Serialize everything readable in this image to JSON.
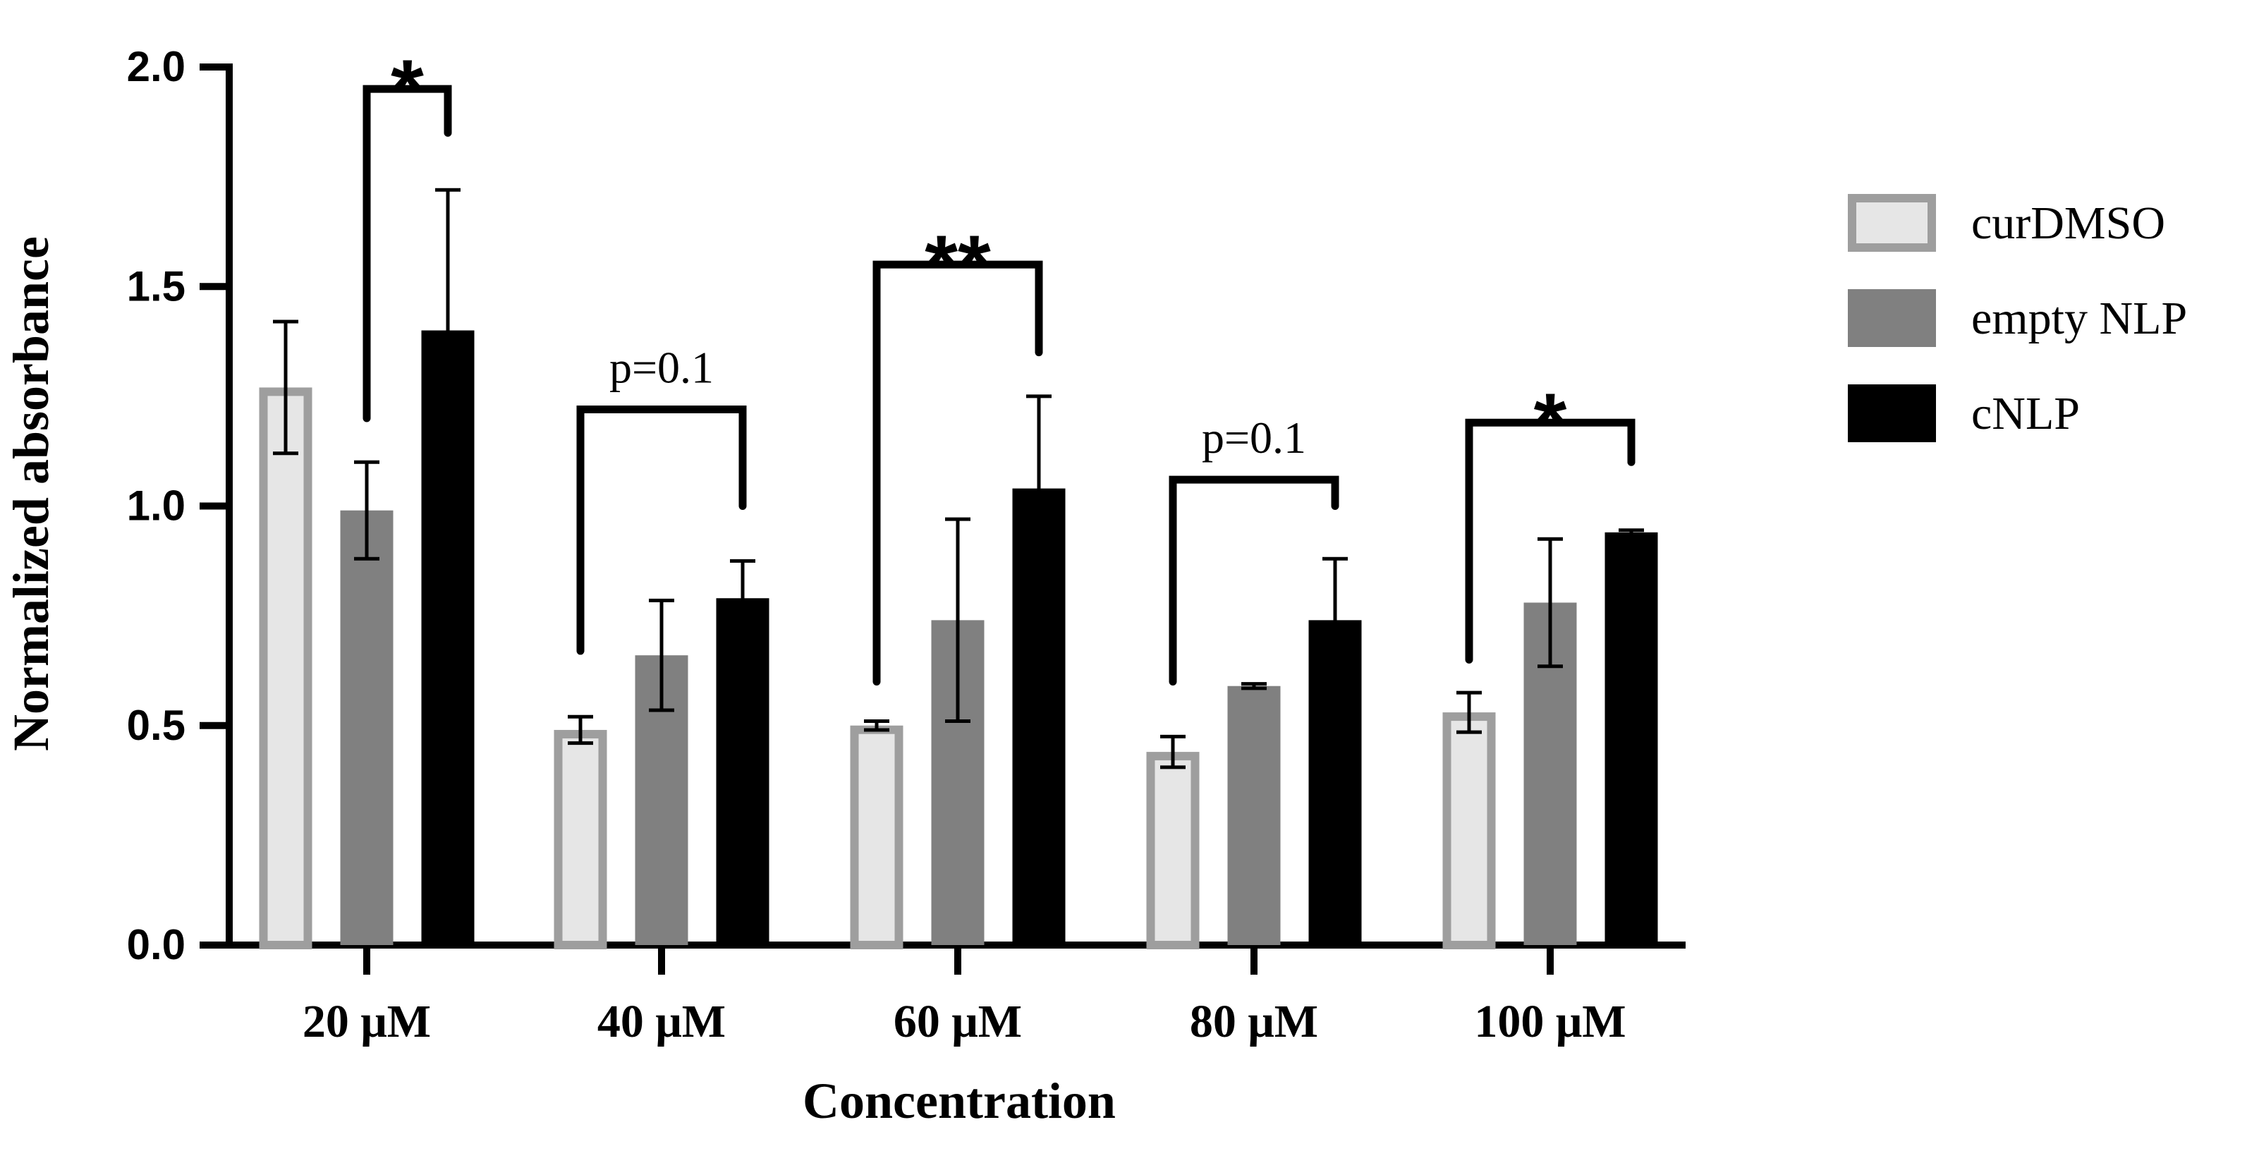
{
  "chart_data": {
    "type": "bar",
    "title": "",
    "xlabel": "Concentration",
    "ylabel": "Normalized absorbance",
    "ylim": [
      0,
      2.0
    ],
    "yticks": [
      0.0,
      0.5,
      1.0,
      1.5,
      2.0
    ],
    "ytick_labels": [
      "0.0",
      "0.5",
      "1.0",
      "1.5",
      "2.0"
    ],
    "categories": [
      "20 μM",
      "40 μM",
      "60 μM",
      "80 μM",
      "100 μM"
    ],
    "series": [
      {
        "name": "curDMSO",
        "values": [
          1.27,
          0.49,
          0.5,
          0.44,
          0.53
        ],
        "errors": [
          0.15,
          0.03,
          0.01,
          0.035,
          0.045
        ],
        "fill": "#e6e6e6",
        "stroke": "#9e9e9e"
      },
      {
        "name": "empty NLP",
        "values": [
          0.99,
          0.66,
          0.74,
          0.59,
          0.78
        ],
        "errors": [
          0.11,
          0.125,
          0.23,
          0.005,
          0.145
        ],
        "fill": "#808080",
        "stroke": "#808080"
      },
      {
        "name": "cNLP",
        "values": [
          1.4,
          0.79,
          1.04,
          0.74,
          0.94
        ],
        "errors": [
          0.32,
          0.085,
          0.21,
          0.14,
          0.005
        ],
        "fill": "#000000",
        "stroke": "#000000"
      }
    ],
    "legend_position": "right",
    "annotations": [
      {
        "category": 0,
        "from_series": 1,
        "to_series": 2,
        "label": "*",
        "bracket_y": 1.95,
        "from_y": 1.2,
        "to_y": 1.85
      },
      {
        "category": 1,
        "from_series": 0,
        "to_series": 2,
        "label": "p=0.1",
        "bracket_y": 1.22,
        "from_y": 0.67,
        "to_y": 1.0
      },
      {
        "category": 2,
        "from_series": 0,
        "to_series": 2,
        "label": "**",
        "bracket_y": 1.55,
        "from_y": 0.6,
        "to_y": 1.35
      },
      {
        "category": 3,
        "from_series": 0,
        "to_series": 2,
        "label": "p=0.1",
        "bracket_y": 1.06,
        "from_y": 0.6,
        "to_y": 1.0
      },
      {
        "category": 4,
        "from_series": 0,
        "to_series": 2,
        "label": "*",
        "bracket_y": 1.19,
        "from_y": 0.65,
        "to_y": 1.1
      }
    ]
  }
}
